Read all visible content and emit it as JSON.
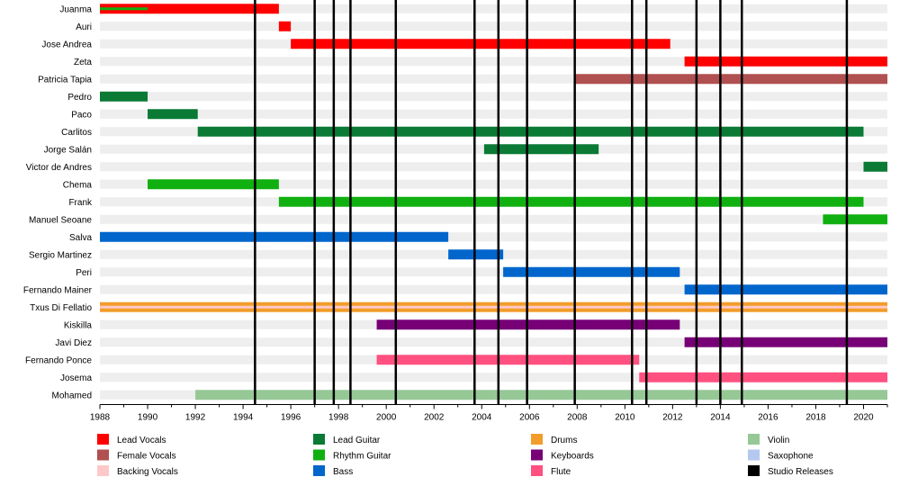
{
  "chart_data": {
    "type": "timeline",
    "title": "",
    "xlabel": "",
    "ylabel": "",
    "xlim": [
      1988,
      2021
    ],
    "x_ticks": [
      1988,
      1990,
      1992,
      1994,
      1996,
      1998,
      2000,
      2002,
      2004,
      2006,
      2008,
      2010,
      2012,
      2014,
      2016,
      2018,
      2020
    ],
    "row_banding": true,
    "members": [
      {
        "name": "Juanma",
        "bars": [
          {
            "role": "Lead Vocals",
            "start": 1988,
            "end": 1995.5
          },
          {
            "role": "Rhythm Guitar",
            "start": 1988,
            "end": 1990,
            "thin": true
          }
        ]
      },
      {
        "name": "Auri",
        "bars": [
          {
            "role": "Lead Vocals",
            "start": 1995.5,
            "end": 1996
          }
        ]
      },
      {
        "name": "Jose Andrea",
        "bars": [
          {
            "role": "Lead Vocals",
            "start": 1996,
            "end": 2011.9
          }
        ]
      },
      {
        "name": "Zeta",
        "bars": [
          {
            "role": "Lead Vocals",
            "start": 2012.5,
            "end": 2021
          }
        ]
      },
      {
        "name": "Patricia Tapia",
        "bars": [
          {
            "role": "Female Vocals",
            "start": 2007.9,
            "end": 2021
          }
        ]
      },
      {
        "name": "Pedro",
        "bars": [
          {
            "role": "Lead Guitar",
            "start": 1988,
            "end": 1990
          }
        ]
      },
      {
        "name": "Paco",
        "bars": [
          {
            "role": "Lead Guitar",
            "start": 1990,
            "end": 1992.1
          }
        ]
      },
      {
        "name": "Carlitos",
        "bars": [
          {
            "role": "Lead Guitar",
            "start": 1992.1,
            "end": 2020
          }
        ]
      },
      {
        "name": "Jorge Salán",
        "bars": [
          {
            "role": "Lead Guitar",
            "start": 2004.1,
            "end": 2008.9
          }
        ]
      },
      {
        "name": "Victor de Andres",
        "bars": [
          {
            "role": "Lead Guitar",
            "start": 2020,
            "end": 2021
          }
        ]
      },
      {
        "name": "Chema",
        "bars": [
          {
            "role": "Rhythm Guitar",
            "start": 1990,
            "end": 1995.5
          }
        ]
      },
      {
        "name": "Frank",
        "bars": [
          {
            "role": "Rhythm Guitar",
            "start": 1995.5,
            "end": 2020
          }
        ]
      },
      {
        "name": "Manuel Seoane",
        "bars": [
          {
            "role": "Rhythm Guitar",
            "start": 2018.3,
            "end": 2021
          }
        ]
      },
      {
        "name": "Salva",
        "bars": [
          {
            "role": "Bass",
            "start": 1988,
            "end": 2002.6
          }
        ]
      },
      {
        "name": "Sergio Martinez",
        "bars": [
          {
            "role": "Bass",
            "start": 2002.6,
            "end": 2004.9
          }
        ]
      },
      {
        "name": "Peri",
        "bars": [
          {
            "role": "Bass",
            "start": 2004.9,
            "end": 2012.3
          }
        ]
      },
      {
        "name": "Fernando Mainer",
        "bars": [
          {
            "role": "Bass",
            "start": 2012.5,
            "end": 2021
          }
        ]
      },
      {
        "name": "Txus Di Fellatio",
        "bars": [
          {
            "role": "Drums",
            "start": 1988,
            "end": 2021
          },
          {
            "role": "Backing Vocals",
            "start": 1988,
            "end": 2021,
            "thin": true
          }
        ]
      },
      {
        "name": "Kiskilla",
        "bars": [
          {
            "role": "Keyboards",
            "start": 1999.6,
            "end": 2012.3
          }
        ]
      },
      {
        "name": "Javi Diez",
        "bars": [
          {
            "role": "Keyboards",
            "start": 2012.5,
            "end": 2021
          }
        ]
      },
      {
        "name": "Fernando Ponce",
        "bars": [
          {
            "role": "Flute",
            "start": 1999.6,
            "end": 2010.6
          }
        ]
      },
      {
        "name": "Josema",
        "bars": [
          {
            "role": "Flute",
            "start": 2010.6,
            "end": 2021
          }
        ]
      },
      {
        "name": "Mohamed",
        "bars": [
          {
            "role": "Violin",
            "start": 1992,
            "end": 2021
          }
        ]
      }
    ],
    "studio_releases": [
      1994.5,
      1997,
      1997.8,
      1998.5,
      2000.4,
      2003.7,
      2004.7,
      2005.9,
      2007.9,
      2010.3,
      2010.9,
      2013,
      2014,
      2014.9,
      2019.3
    ],
    "legend": {
      "placement": "bottom",
      "columns": 4,
      "items": [
        {
          "label": "Lead Vocals",
          "color": "#ff0000"
        },
        {
          "label": "Female Vocals",
          "color": "#b05050"
        },
        {
          "label": "Backing Vocals",
          "color": "#ffc8c8"
        },
        {
          "label": "Lead Guitar",
          "color": "#0a7a35"
        },
        {
          "label": "Rhythm Guitar",
          "color": "#10b010"
        },
        {
          "label": "Bass",
          "color": "#0066cc"
        },
        {
          "label": "Drums",
          "color": "#f29d2a"
        },
        {
          "label": "Keyboards",
          "color": "#770077"
        },
        {
          "label": "Flute",
          "color": "#ff5080"
        },
        {
          "label": "Violin",
          "color": "#96c896"
        },
        {
          "label": "Saxophone",
          "color": "#b4c8f0"
        },
        {
          "label": "Studio Releases",
          "color": "#000000"
        }
      ]
    }
  }
}
